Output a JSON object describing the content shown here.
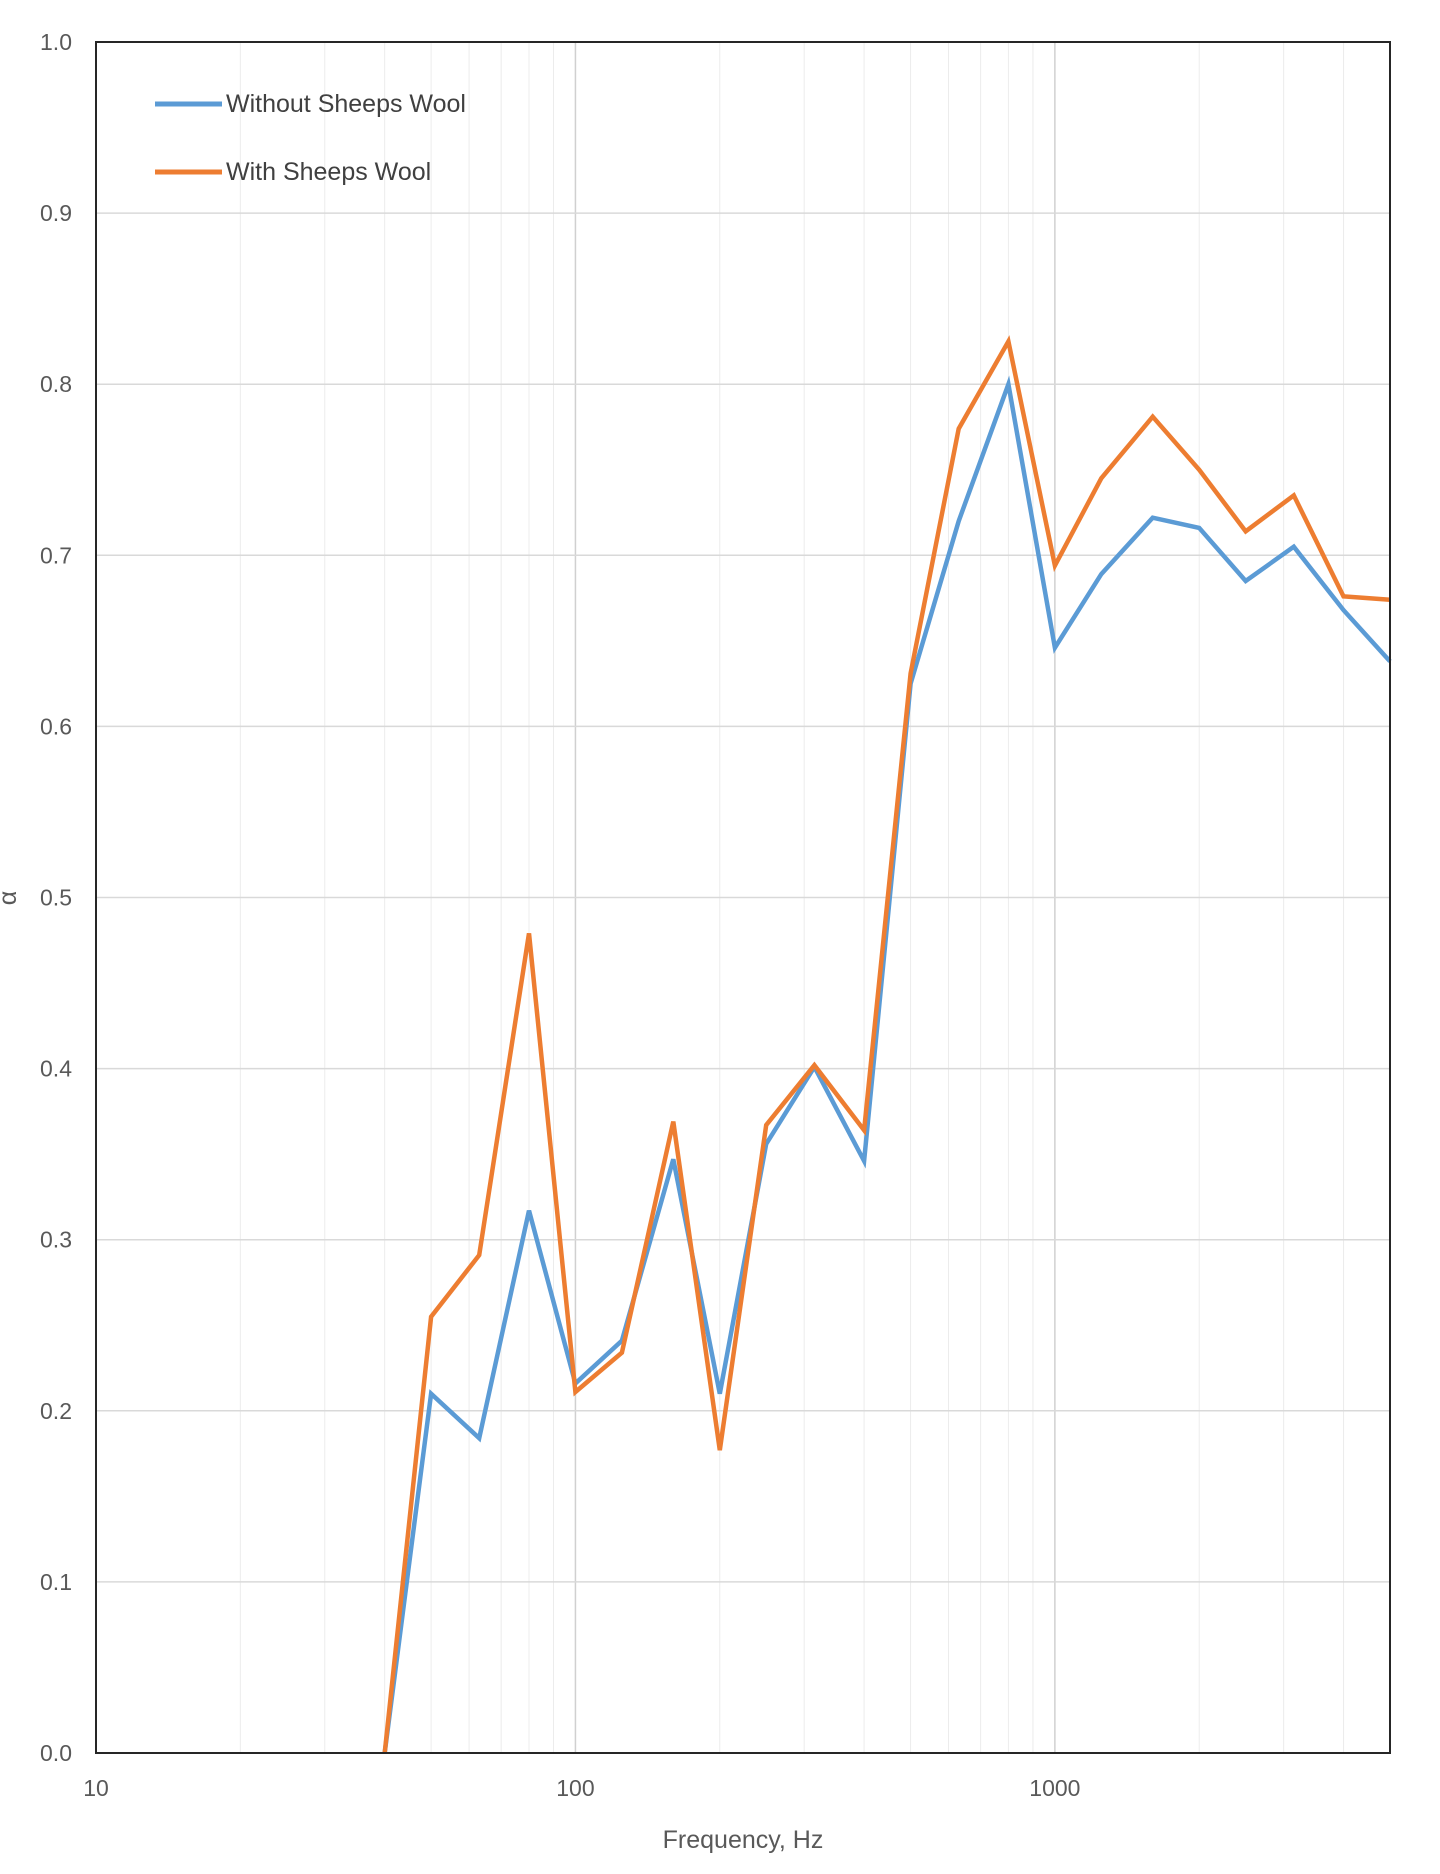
{
  "chart_data": {
    "type": "line",
    "title": "",
    "xlabel": "Frequency, Hz",
    "ylabel": "α",
    "x_scale": "log",
    "xlim": [
      10,
      5000
    ],
    "ylim": [
      0.0,
      1.0
    ],
    "x_ticks": [
      "10",
      "100",
      "1000"
    ],
    "y_ticks": [
      "0.0",
      "0.1",
      "0.2",
      "0.3",
      "0.4",
      "0.5",
      "0.6",
      "0.7",
      "0.8",
      "0.9",
      "1.0"
    ],
    "grid": true,
    "legend_position": "top-left",
    "x": [
      40,
      50,
      63,
      80,
      100,
      125,
      160,
      200,
      250,
      315,
      400,
      500,
      630,
      800,
      1000,
      1250,
      1600,
      2000,
      2500,
      3150,
      4000,
      5000
    ],
    "series": [
      {
        "name": "Without Sheeps Wool",
        "color": "#5B9BD5",
        "values": [
          0.0,
          0.21,
          0.184,
          0.317,
          0.216,
          0.241,
          0.347,
          0.21,
          0.356,
          0.401,
          0.346,
          0.625,
          0.72,
          0.8,
          0.646,
          0.689,
          0.722,
          0.716,
          0.685,
          0.705,
          0.668,
          0.638
        ]
      },
      {
        "name": "With Sheeps Wool",
        "color": "#ED7D31",
        "values": [
          0.0,
          0.255,
          0.291,
          0.479,
          0.211,
          0.234,
          0.369,
          0.177,
          0.367,
          0.402,
          0.364,
          0.631,
          0.774,
          0.825,
          0.694,
          0.745,
          0.781,
          0.75,
          0.714,
          0.735,
          0.676,
          0.674
        ]
      }
    ]
  }
}
